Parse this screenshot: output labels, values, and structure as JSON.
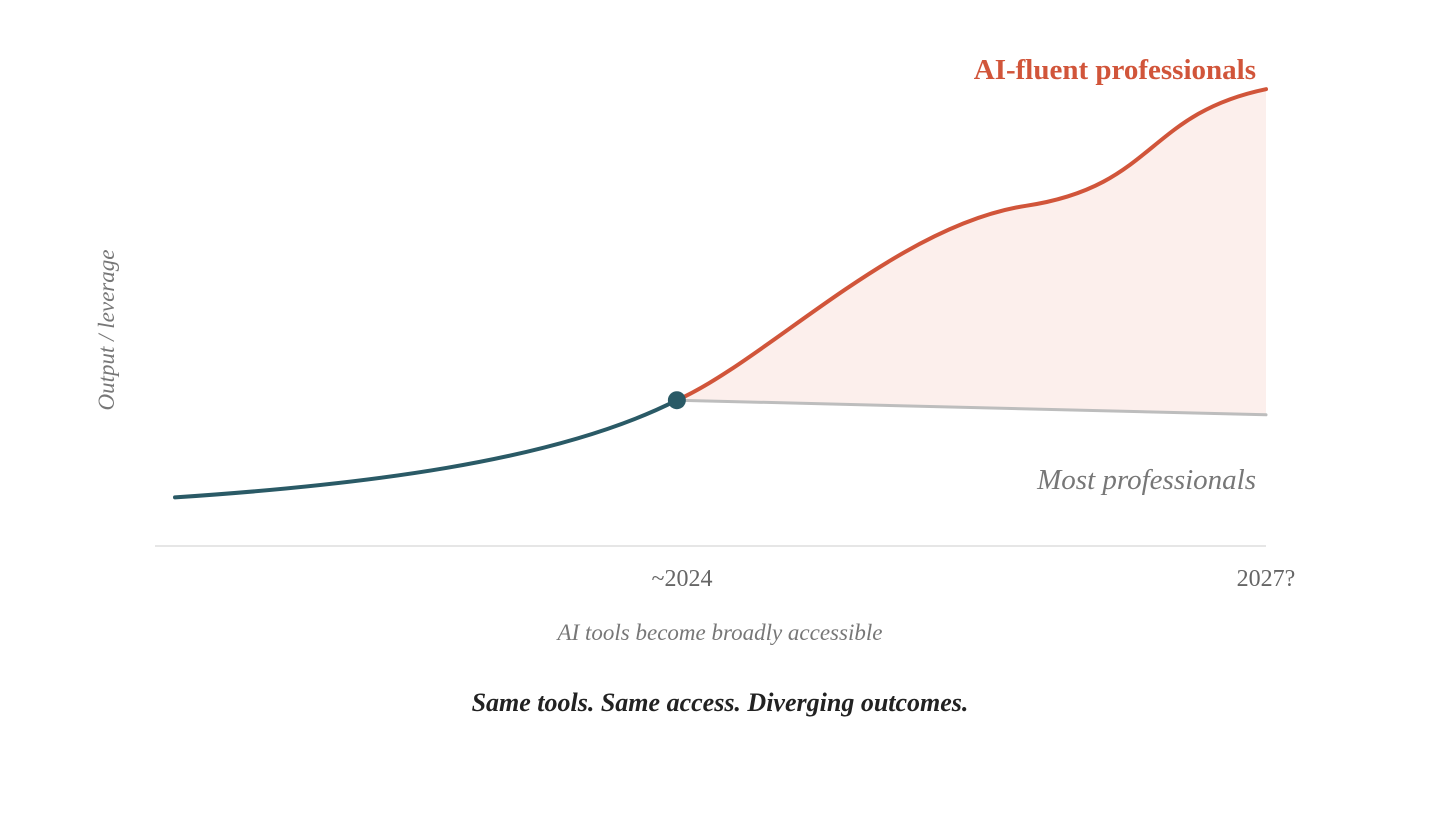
{
  "chart_data": {
    "type": "line",
    "ylabel": "Output / leverage",
    "xlabel": "AI tools become broadly accessible",
    "x_ticks": [
      "~2024",
      "2027?"
    ],
    "annotation": "AI tools become broadly accessible",
    "caption": "Same tools. Same access. Diverging outcomes.",
    "grid": false,
    "series": [
      {
        "name": "",
        "label_shown": false,
        "points": [
          [
            0,
            0.1
          ],
          [
            0.2,
            0.14
          ],
          [
            0.46,
            0.3
          ]
        ]
      },
      {
        "name": "AI-fluent professionals",
        "points": [
          [
            0.46,
            0.3
          ],
          [
            0.6,
            0.45
          ],
          [
            0.8,
            0.72
          ],
          [
            1.0,
            0.94
          ]
        ]
      },
      {
        "name": "Most professionals",
        "points": [
          [
            0.46,
            0.3
          ],
          [
            1.0,
            0.27
          ]
        ]
      }
    ],
    "shaded_region": "between AI-fluent professionals and Most professionals",
    "colors": {
      "baseline": "#2a5a66",
      "fluent": "#d1553a",
      "most": "#bdbdbd",
      "fill": "#fcefec",
      "axis": "#dddddd",
      "muted_text": "#777777",
      "caption_text": "#222222"
    }
  }
}
